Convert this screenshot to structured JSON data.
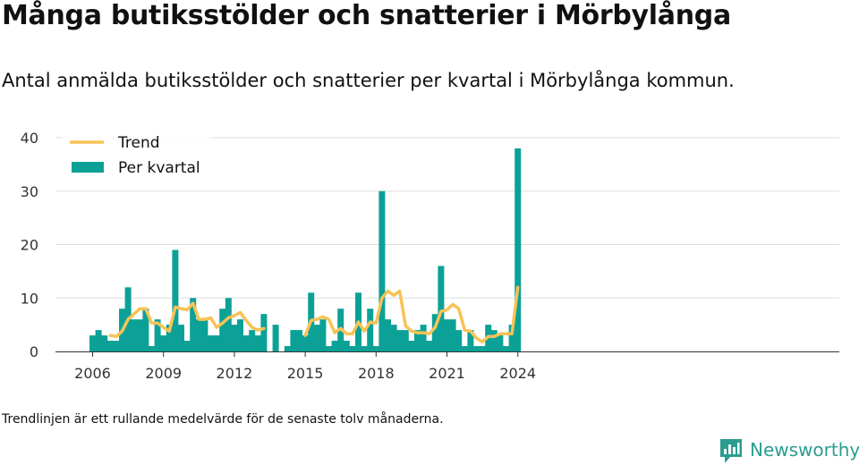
{
  "header": {
    "title": "Många butiksstölder och snatterier i Mörbylånga",
    "subtitle": "Antal anmälda butiksstölder och snatterier per kvartal i Mörbylånga kommun."
  },
  "footnote": "Trendlinjen är ett rullande medelvärde för de senaste tolv månaderna.",
  "brand": {
    "name": "Newsworthy",
    "color": "#2a9d8f"
  },
  "colors": {
    "bar": "#0ca197",
    "trend": "#f7c356",
    "grid": "#dddddd",
    "axis": "#333333"
  },
  "chart_data": {
    "type": "bar",
    "title": "",
    "xlabel": "",
    "ylabel": "",
    "ylim": [
      0,
      40
    ],
    "yticks": [
      0,
      10,
      20,
      30,
      40
    ],
    "xtick_labels": [
      "2006",
      "2009",
      "2012",
      "2015",
      "2018",
      "2021",
      "2024"
    ],
    "grid": true,
    "legend_position": "top-left",
    "x_start": "2006 Q1",
    "categories": [
      "2006 Q1",
      "2006 Q2",
      "2006 Q3",
      "2006 Q4",
      "2007 Q1",
      "2007 Q2",
      "2007 Q3",
      "2007 Q4",
      "2008 Q1",
      "2008 Q2",
      "2008 Q3",
      "2008 Q4",
      "2009 Q1",
      "2009 Q2",
      "2009 Q3",
      "2009 Q4",
      "2010 Q1",
      "2010 Q2",
      "2010 Q3",
      "2010 Q4",
      "2011 Q1",
      "2011 Q2",
      "2011 Q3",
      "2011 Q4",
      "2012 Q1",
      "2012 Q2",
      "2012 Q3",
      "2012 Q4",
      "2013 Q1",
      "2013 Q2",
      "2013 Q3",
      "2013 Q4",
      "2014 Q1",
      "2014 Q2",
      "2014 Q3",
      "2014 Q4",
      "2015 Q1",
      "2015 Q2",
      "2015 Q3",
      "2015 Q4",
      "2016 Q1",
      "2016 Q2",
      "2016 Q3",
      "2016 Q4",
      "2017 Q1",
      "2017 Q2",
      "2017 Q3",
      "2017 Q4",
      "2018 Q1",
      "2018 Q2",
      "2018 Q3",
      "2018 Q4",
      "2019 Q1",
      "2019 Q2",
      "2019 Q3",
      "2019 Q4",
      "2020 Q1",
      "2020 Q2",
      "2020 Q3",
      "2020 Q4",
      "2021 Q1",
      "2021 Q2",
      "2021 Q3",
      "2021 Q4",
      "2022 Q1",
      "2022 Q2",
      "2022 Q3",
      "2022 Q4",
      "2023 Q1",
      "2023 Q2",
      "2023 Q3",
      "2023 Q4",
      "2024 Q1"
    ],
    "series": [
      {
        "name": "Per kvartal",
        "kind": "bar",
        "values": [
          3,
          4,
          3,
          2,
          2,
          8,
          12,
          6,
          6,
          8,
          1,
          6,
          3,
          5,
          19,
          5,
          2,
          10,
          6,
          6,
          3,
          3,
          8,
          10,
          5,
          6,
          3,
          4,
          3,
          7,
          null,
          5,
          null,
          1,
          4,
          4,
          3,
          11,
          5,
          6,
          1,
          2,
          8,
          2,
          1,
          11,
          1,
          8,
          1,
          30,
          6,
          5,
          4,
          4,
          2,
          4,
          5,
          2,
          7,
          16,
          6,
          6,
          4,
          1,
          4,
          1,
          1,
          5,
          4,
          3,
          1,
          5,
          38
        ]
      },
      {
        "name": "Trend",
        "kind": "line",
        "values": [
          null,
          null,
          null,
          3,
          2.8,
          3.8,
          6,
          7,
          8,
          8,
          5.3,
          5.3,
          4.5,
          3.8,
          8.3,
          8,
          7.8,
          9,
          6,
          6,
          6.3,
          4.5,
          5.3,
          6.3,
          6.7,
          7.3,
          5.8,
          4.5,
          4,
          4.3,
          null,
          null,
          null,
          null,
          null,
          null,
          3,
          5.8,
          6,
          6.5,
          6,
          3.5,
          4.3,
          3.3,
          3.3,
          5.5,
          3.8,
          5.5,
          5.3,
          10,
          11.3,
          10.5,
          11.3,
          4.8,
          3.8,
          3.5,
          3.5,
          3.3,
          4.5,
          7.5,
          7.8,
          8.8,
          8,
          4,
          3.8,
          2.5,
          1.8,
          2.8,
          2.8,
          3.3,
          3.3,
          3.3,
          12
        ]
      }
    ]
  }
}
